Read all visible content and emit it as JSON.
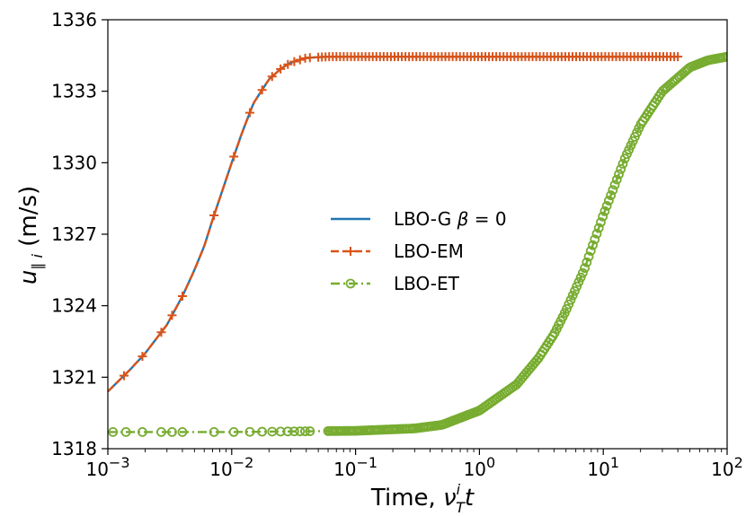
{
  "chart_data": {
    "type": "line",
    "title": "",
    "xscale": "log",
    "xlim": [
      0.001,
      100
    ],
    "ylim": [
      1318,
      1336
    ],
    "grid": false,
    "legend_placement": "center",
    "xlabel": {
      "text": "Time, ",
      "symbol": "ν",
      "superscript": "i",
      "subscript": "T",
      "suffix": "t"
    },
    "ylabel": {
      "symbol": "u",
      "subscript": "∥ i",
      "units": " (m/s)"
    },
    "x_ticks": [
      {
        "value": 0.001,
        "base": "10",
        "exp": "−3"
      },
      {
        "value": 0.01,
        "base": "10",
        "exp": "−2"
      },
      {
        "value": 0.1,
        "base": "10",
        "exp": "−1"
      },
      {
        "value": 1,
        "base": "10",
        "exp": "0"
      },
      {
        "value": 10,
        "base": "10",
        "exp": "1"
      },
      {
        "value": 100,
        "base": "10",
        "exp": "2"
      }
    ],
    "y_ticks": [
      1318,
      1321,
      1324,
      1327,
      1330,
      1333,
      1336
    ],
    "series": [
      {
        "name": "LBO-G β = 0",
        "legend_prefix": "LBO-G ",
        "legend_symbol": "β",
        "legend_suffix": " = 0",
        "color": "#1f77b4",
        "style": "solid",
        "marker": "none",
        "x": [
          0.001,
          0.0015,
          0.002,
          0.003,
          0.004,
          0.005,
          0.006,
          0.007,
          0.008,
          0.01,
          0.012,
          0.015,
          0.02,
          0.025,
          0.03,
          0.04,
          0.06,
          0.1,
          1,
          10,
          40
        ],
        "y": [
          1320.4,
          1321.3,
          1322.0,
          1323.2,
          1324.4,
          1325.5,
          1326.5,
          1327.6,
          1328.5,
          1330.0,
          1331.2,
          1332.5,
          1333.5,
          1333.95,
          1334.2,
          1334.4,
          1334.45,
          1334.45,
          1334.45,
          1334.45,
          1334.45
        ]
      },
      {
        "name": "LBO-EM",
        "color": "#d95319",
        "style": "dashed",
        "marker": "plus",
        "x": [
          0.001,
          0.0015,
          0.002,
          0.003,
          0.004,
          0.005,
          0.006,
          0.007,
          0.008,
          0.01,
          0.012,
          0.015,
          0.02,
          0.025,
          0.03,
          0.04,
          0.06,
          0.1,
          1,
          10,
          40
        ],
        "y": [
          1320.4,
          1321.3,
          1322.0,
          1323.2,
          1324.4,
          1325.5,
          1326.5,
          1327.6,
          1328.5,
          1330.0,
          1331.2,
          1332.5,
          1333.5,
          1333.95,
          1334.2,
          1334.4,
          1334.45,
          1334.45,
          1334.45,
          1334.45,
          1334.45
        ],
        "marker_x": [
          0.00135,
          0.0019,
          0.0027,
          0.0033,
          0.004,
          0.0072,
          0.0104,
          0.014,
          0.0176,
          0.0212,
          0.0248,
          0.0284,
          0.032,
          0.0356,
          0.0392,
          0.0428
        ],
        "marker_range": [
          0.05,
          40
        ],
        "marker_count": 100
      },
      {
        "name": "LBO-ET",
        "color": "#77ac30",
        "style": "dashdot",
        "marker": "circle",
        "x": [
          0.001,
          0.01,
          0.1,
          0.3,
          0.5,
          1,
          2,
          3,
          4,
          5,
          7,
          10,
          15,
          20,
          30,
          50,
          70,
          100
        ],
        "y": [
          1318.7,
          1318.7,
          1318.75,
          1318.85,
          1319.0,
          1319.6,
          1320.7,
          1321.8,
          1322.8,
          1323.8,
          1325.5,
          1327.8,
          1330.2,
          1331.6,
          1333.0,
          1334.0,
          1334.3,
          1334.45
        ],
        "marker_x": [
          0.0011,
          0.0014,
          0.0019,
          0.0027,
          0.0033,
          0.004,
          0.0072,
          0.0104,
          0.014,
          0.0176,
          0.0212,
          0.0248,
          0.0284,
          0.032,
          0.0356,
          0.0392,
          0.0428
        ],
        "marker_range": [
          0.06,
          100
        ],
        "marker_count": 200
      }
    ]
  }
}
